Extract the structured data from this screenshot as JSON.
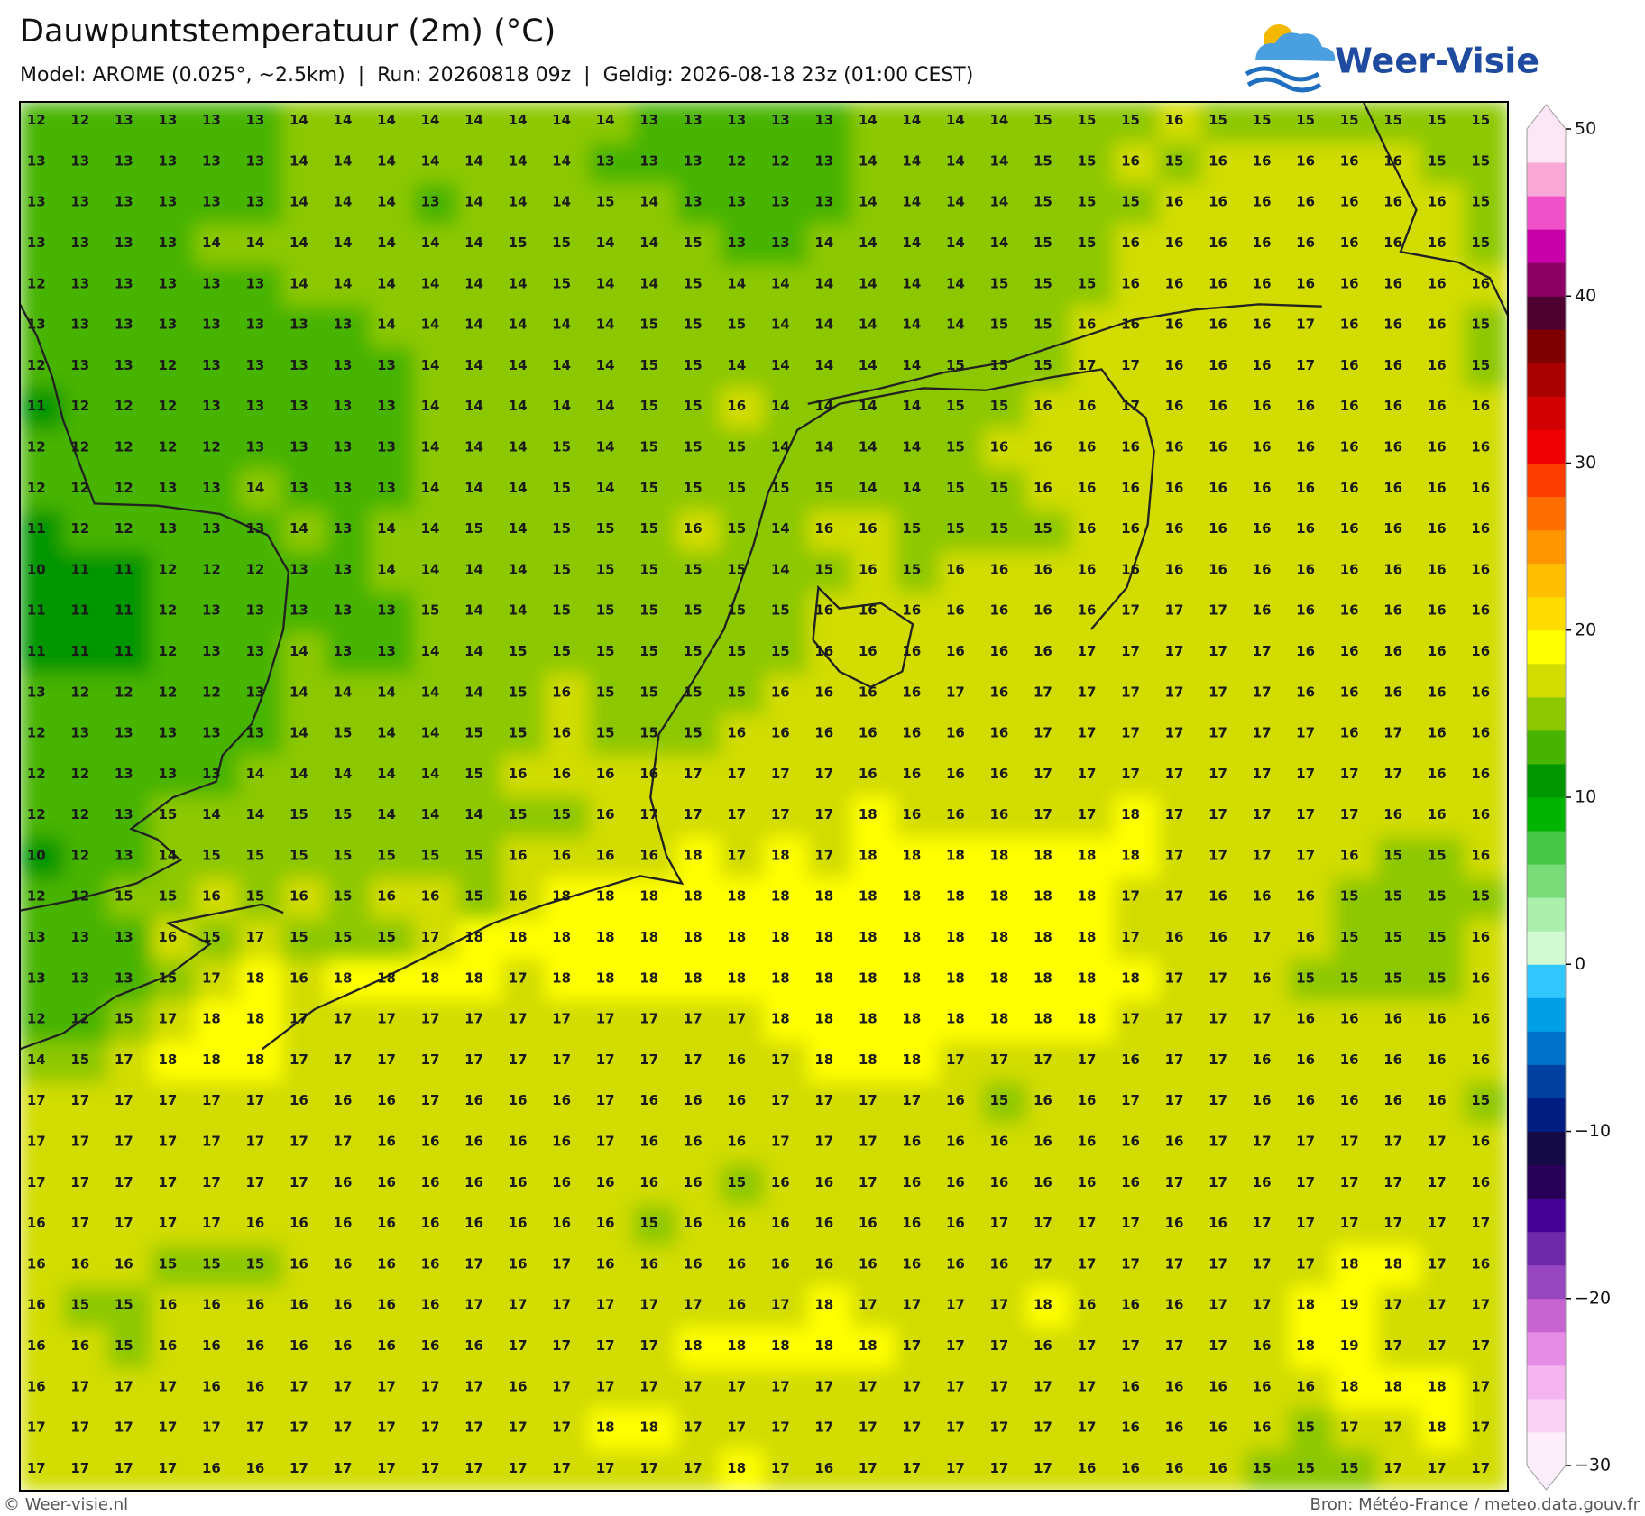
{
  "header": {
    "title": "Dauwpuntstemperatuur (2m) (°C)",
    "subtitle": "Model: AROME (0.025°, ~2.5km)  |  Run: 20260818 09z  |  Geldig: 2026-08-18 23z (01:00 CEST)",
    "logo": "Weer-Visie"
  },
  "footer": {
    "left": "© Weer-visie.nl",
    "right": "Bron: Météo-France / meteo.data.gouv.fr"
  },
  "colorbar": {
    "lim": [
      -30,
      50
    ],
    "ticks": [
      50,
      40,
      30,
      20,
      10,
      0,
      {
        "value": -10,
        "label": "−10"
      },
      {
        "value": -20,
        "label": "−20"
      },
      {
        "value": -30,
        "label": "−30"
      }
    ],
    "colors": [
      "#fdeefc",
      "#fad2f8",
      "#f5b4f0",
      "#e68ce6",
      "#c864d2",
      "#9646be",
      "#6e28aa",
      "#460096",
      "#28005a",
      "#140a46",
      "#001e82",
      "#0040a0",
      "#0070c8",
      "#00a0e6",
      "#32c8ff",
      "#d2fad2",
      "#aaf0aa",
      "#78dc78",
      "#46c846",
      "#00b400",
      "#009600",
      "#46b400",
      "#8cc800",
      "#d2dc00",
      "#ffff00",
      "#ffdc00",
      "#ffbe00",
      "#ff9600",
      "#ff6e00",
      "#ff3c00",
      "#f00000",
      "#d20000",
      "#aa0000",
      "#800000",
      "#500030",
      "#8c0064",
      "#c800aa",
      "#f050c8",
      "#f9a8d8",
      "#fde6f5"
    ]
  },
  "grid": {
    "values": [
      [
        12,
        12,
        13,
        13,
        13,
        13,
        14,
        14,
        14,
        14,
        14,
        14,
        14,
        14,
        13,
        13,
        13,
        13,
        13,
        14,
        14,
        14,
        14,
        15,
        15,
        15,
        16,
        15,
        15,
        15,
        15,
        15,
        15,
        15
      ],
      [
        13,
        13,
        13,
        13,
        13,
        13,
        14,
        14,
        14,
        14,
        14,
        14,
        14,
        13,
        13,
        13,
        12,
        12,
        13,
        14,
        14,
        14,
        14,
        15,
        15,
        16,
        15,
        16,
        16,
        16,
        16,
        16,
        15,
        15
      ],
      [
        13,
        13,
        13,
        13,
        13,
        13,
        14,
        14,
        14,
        13,
        14,
        14,
        14,
        15,
        14,
        13,
        13,
        13,
        13,
        14,
        14,
        14,
        14,
        15,
        15,
        15,
        16,
        16,
        16,
        16,
        16,
        16,
        16,
        15
      ],
      [
        13,
        13,
        13,
        13,
        14,
        14,
        14,
        14,
        14,
        14,
        14,
        15,
        15,
        14,
        14,
        15,
        13,
        13,
        14,
        14,
        14,
        14,
        14,
        15,
        15,
        16,
        16,
        16,
        16,
        16,
        16,
        16,
        16,
        15
      ],
      [
        12,
        13,
        13,
        13,
        13,
        13,
        14,
        14,
        14,
        14,
        14,
        14,
        15,
        14,
        14,
        15,
        14,
        14,
        14,
        14,
        14,
        14,
        15,
        15,
        15,
        16,
        16,
        16,
        16,
        16,
        16,
        16,
        16,
        16
      ],
      [
        13,
        13,
        13,
        13,
        13,
        13,
        13,
        13,
        14,
        14,
        14,
        14,
        14,
        14,
        15,
        15,
        15,
        14,
        14,
        14,
        14,
        14,
        15,
        15,
        16,
        16,
        16,
        16,
        16,
        17,
        16,
        16,
        16,
        15
      ],
      [
        12,
        13,
        13,
        12,
        13,
        13,
        13,
        13,
        13,
        14,
        14,
        14,
        14,
        14,
        15,
        15,
        14,
        14,
        14,
        14,
        14,
        15,
        15,
        15,
        17,
        17,
        16,
        16,
        16,
        17,
        16,
        16,
        16,
        15
      ],
      [
        11,
        12,
        12,
        12,
        13,
        13,
        13,
        13,
        13,
        14,
        14,
        14,
        14,
        14,
        15,
        15,
        16,
        14,
        14,
        14,
        14,
        15,
        15,
        16,
        16,
        17,
        16,
        16,
        16,
        16,
        16,
        16,
        16,
        16
      ],
      [
        12,
        12,
        12,
        12,
        12,
        13,
        13,
        13,
        13,
        14,
        14,
        14,
        15,
        14,
        15,
        15,
        15,
        14,
        14,
        14,
        14,
        15,
        16,
        16,
        16,
        16,
        16,
        16,
        16,
        16,
        16,
        16,
        16,
        16
      ],
      [
        12,
        12,
        12,
        13,
        13,
        14,
        13,
        13,
        13,
        14,
        14,
        14,
        15,
        14,
        15,
        15,
        15,
        15,
        15,
        14,
        14,
        15,
        15,
        16,
        16,
        16,
        16,
        16,
        16,
        16,
        16,
        16,
        16,
        16
      ],
      [
        11,
        12,
        12,
        13,
        13,
        13,
        14,
        13,
        14,
        14,
        15,
        14,
        15,
        15,
        15,
        16,
        15,
        14,
        16,
        16,
        15,
        15,
        15,
        15,
        16,
        16,
        16,
        16,
        16,
        16,
        16,
        16,
        16,
        16
      ],
      [
        10,
        11,
        11,
        12,
        12,
        12,
        13,
        13,
        14,
        14,
        14,
        14,
        15,
        15,
        15,
        15,
        15,
        14,
        15,
        16,
        15,
        16,
        16,
        16,
        16,
        16,
        16,
        16,
        16,
        16,
        16,
        16,
        16,
        16
      ],
      [
        11,
        11,
        11,
        12,
        13,
        13,
        13,
        13,
        13,
        15,
        14,
        14,
        15,
        15,
        15,
        15,
        15,
        15,
        16,
        16,
        16,
        16,
        16,
        16,
        16,
        17,
        17,
        17,
        16,
        16,
        16,
        16,
        16,
        16
      ],
      [
        11,
        11,
        11,
        12,
        13,
        13,
        14,
        13,
        13,
        14,
        14,
        15,
        15,
        15,
        15,
        15,
        15,
        15,
        16,
        16,
        16,
        16,
        16,
        16,
        17,
        17,
        17,
        17,
        17,
        16,
        16,
        16,
        16,
        16
      ],
      [
        13,
        12,
        12,
        12,
        12,
        13,
        14,
        14,
        14,
        14,
        14,
        15,
        16,
        15,
        15,
        15,
        15,
        16,
        16,
        16,
        16,
        17,
        16,
        17,
        17,
        17,
        17,
        17,
        17,
        16,
        16,
        16,
        16,
        16
      ],
      [
        12,
        13,
        13,
        13,
        13,
        13,
        14,
        15,
        14,
        14,
        15,
        15,
        16,
        15,
        15,
        15,
        16,
        16,
        16,
        16,
        16,
        16,
        16,
        17,
        17,
        17,
        17,
        17,
        17,
        17,
        16,
        17,
        16,
        16
      ],
      [
        12,
        12,
        13,
        13,
        13,
        14,
        14,
        14,
        14,
        14,
        15,
        16,
        16,
        16,
        16,
        17,
        17,
        17,
        17,
        16,
        16,
        16,
        16,
        17,
        17,
        17,
        17,
        17,
        17,
        17,
        17,
        17,
        16,
        16
      ],
      [
        12,
        12,
        13,
        15,
        14,
        14,
        15,
        15,
        14,
        14,
        14,
        15,
        15,
        16,
        17,
        17,
        17,
        17,
        17,
        18,
        16,
        16,
        16,
        17,
        17,
        18,
        17,
        17,
        17,
        17,
        17,
        16,
        16,
        16
      ],
      [
        10,
        12,
        13,
        14,
        15,
        15,
        15,
        15,
        15,
        15,
        15,
        16,
        16,
        16,
        16,
        18,
        17,
        18,
        17,
        18,
        18,
        18,
        18,
        18,
        18,
        18,
        17,
        17,
        17,
        17,
        16,
        15,
        15,
        16
      ],
      [
        12,
        12,
        15,
        15,
        16,
        15,
        16,
        15,
        16,
        16,
        15,
        16,
        18,
        18,
        18,
        18,
        18,
        18,
        18,
        18,
        18,
        18,
        18,
        18,
        18,
        17,
        17,
        16,
        16,
        16,
        15,
        15,
        15,
        15
      ],
      [
        13,
        13,
        13,
        16,
        15,
        17,
        15,
        15,
        15,
        17,
        18,
        18,
        18,
        18,
        18,
        18,
        18,
        18,
        18,
        18,
        18,
        18,
        18,
        18,
        18,
        17,
        16,
        16,
        17,
        16,
        15,
        15,
        15,
        16
      ],
      [
        13,
        13,
        13,
        15,
        17,
        18,
        16,
        18,
        18,
        18,
        18,
        17,
        18,
        18,
        18,
        18,
        18,
        18,
        18,
        18,
        18,
        18,
        18,
        18,
        18,
        18,
        17,
        17,
        16,
        15,
        15,
        15,
        15,
        16
      ],
      [
        12,
        12,
        15,
        17,
        18,
        18,
        17,
        17,
        17,
        17,
        17,
        17,
        17,
        17,
        17,
        17,
        17,
        18,
        18,
        18,
        18,
        18,
        18,
        18,
        18,
        17,
        17,
        17,
        17,
        16,
        16,
        16,
        16,
        16
      ],
      [
        14,
        15,
        17,
        18,
        18,
        18,
        17,
        17,
        17,
        17,
        17,
        17,
        17,
        17,
        17,
        17,
        16,
        17,
        18,
        18,
        18,
        17,
        17,
        17,
        17,
        16,
        17,
        17,
        16,
        16,
        16,
        16,
        16,
        16
      ],
      [
        17,
        17,
        17,
        17,
        17,
        17,
        16,
        16,
        16,
        17,
        16,
        16,
        16,
        17,
        16,
        16,
        16,
        17,
        17,
        17,
        17,
        16,
        15,
        16,
        16,
        17,
        17,
        17,
        16,
        16,
        16,
        16,
        16,
        15
      ],
      [
        17,
        17,
        17,
        17,
        17,
        17,
        17,
        17,
        16,
        16,
        16,
        16,
        16,
        17,
        16,
        16,
        16,
        17,
        17,
        17,
        16,
        16,
        16,
        16,
        16,
        16,
        16,
        17,
        17,
        17,
        17,
        17,
        17,
        16
      ],
      [
        17,
        17,
        17,
        17,
        17,
        17,
        17,
        16,
        16,
        16,
        16,
        16,
        16,
        16,
        16,
        16,
        15,
        16,
        16,
        17,
        16,
        16,
        16,
        16,
        16,
        16,
        17,
        17,
        16,
        17,
        17,
        17,
        17,
        16
      ],
      [
        16,
        17,
        17,
        17,
        17,
        16,
        16,
        16,
        16,
        16,
        16,
        16,
        16,
        16,
        15,
        16,
        16,
        16,
        16,
        16,
        16,
        16,
        17,
        17,
        17,
        17,
        16,
        16,
        17,
        17,
        17,
        17,
        17,
        17
      ],
      [
        16,
        16,
        16,
        15,
        15,
        15,
        16,
        16,
        16,
        16,
        17,
        16,
        17,
        16,
        16,
        16,
        16,
        16,
        16,
        16,
        16,
        16,
        16,
        17,
        17,
        17,
        17,
        17,
        17,
        17,
        18,
        18,
        17,
        16
      ],
      [
        16,
        15,
        15,
        16,
        16,
        16,
        16,
        16,
        16,
        16,
        17,
        17,
        17,
        17,
        17,
        17,
        16,
        17,
        18,
        17,
        17,
        17,
        17,
        18,
        16,
        16,
        16,
        17,
        17,
        18,
        19,
        17,
        17,
        17
      ],
      [
        16,
        16,
        15,
        16,
        16,
        16,
        16,
        16,
        16,
        16,
        16,
        17,
        17,
        17,
        17,
        18,
        18,
        18,
        18,
        18,
        17,
        17,
        17,
        16,
        17,
        17,
        17,
        17,
        16,
        18,
        19,
        17,
        17,
        17
      ],
      [
        16,
        17,
        17,
        17,
        16,
        16,
        17,
        17,
        17,
        17,
        17,
        16,
        17,
        17,
        17,
        17,
        17,
        17,
        17,
        17,
        17,
        17,
        17,
        17,
        17,
        16,
        16,
        16,
        16,
        16,
        18,
        18,
        18,
        17
      ],
      [
        17,
        17,
        17,
        17,
        17,
        17,
        17,
        17,
        17,
        17,
        17,
        17,
        17,
        18,
        18,
        17,
        17,
        17,
        17,
        17,
        17,
        17,
        17,
        17,
        17,
        16,
        16,
        16,
        16,
        15,
        17,
        17,
        18,
        17
      ],
      [
        17,
        17,
        17,
        17,
        16,
        16,
        17,
        17,
        17,
        17,
        17,
        17,
        17,
        17,
        17,
        17,
        18,
        17,
        16,
        17,
        17,
        17,
        17,
        17,
        16,
        16,
        16,
        16,
        15,
        15,
        15,
        17,
        17,
        17
      ]
    ]
  }
}
